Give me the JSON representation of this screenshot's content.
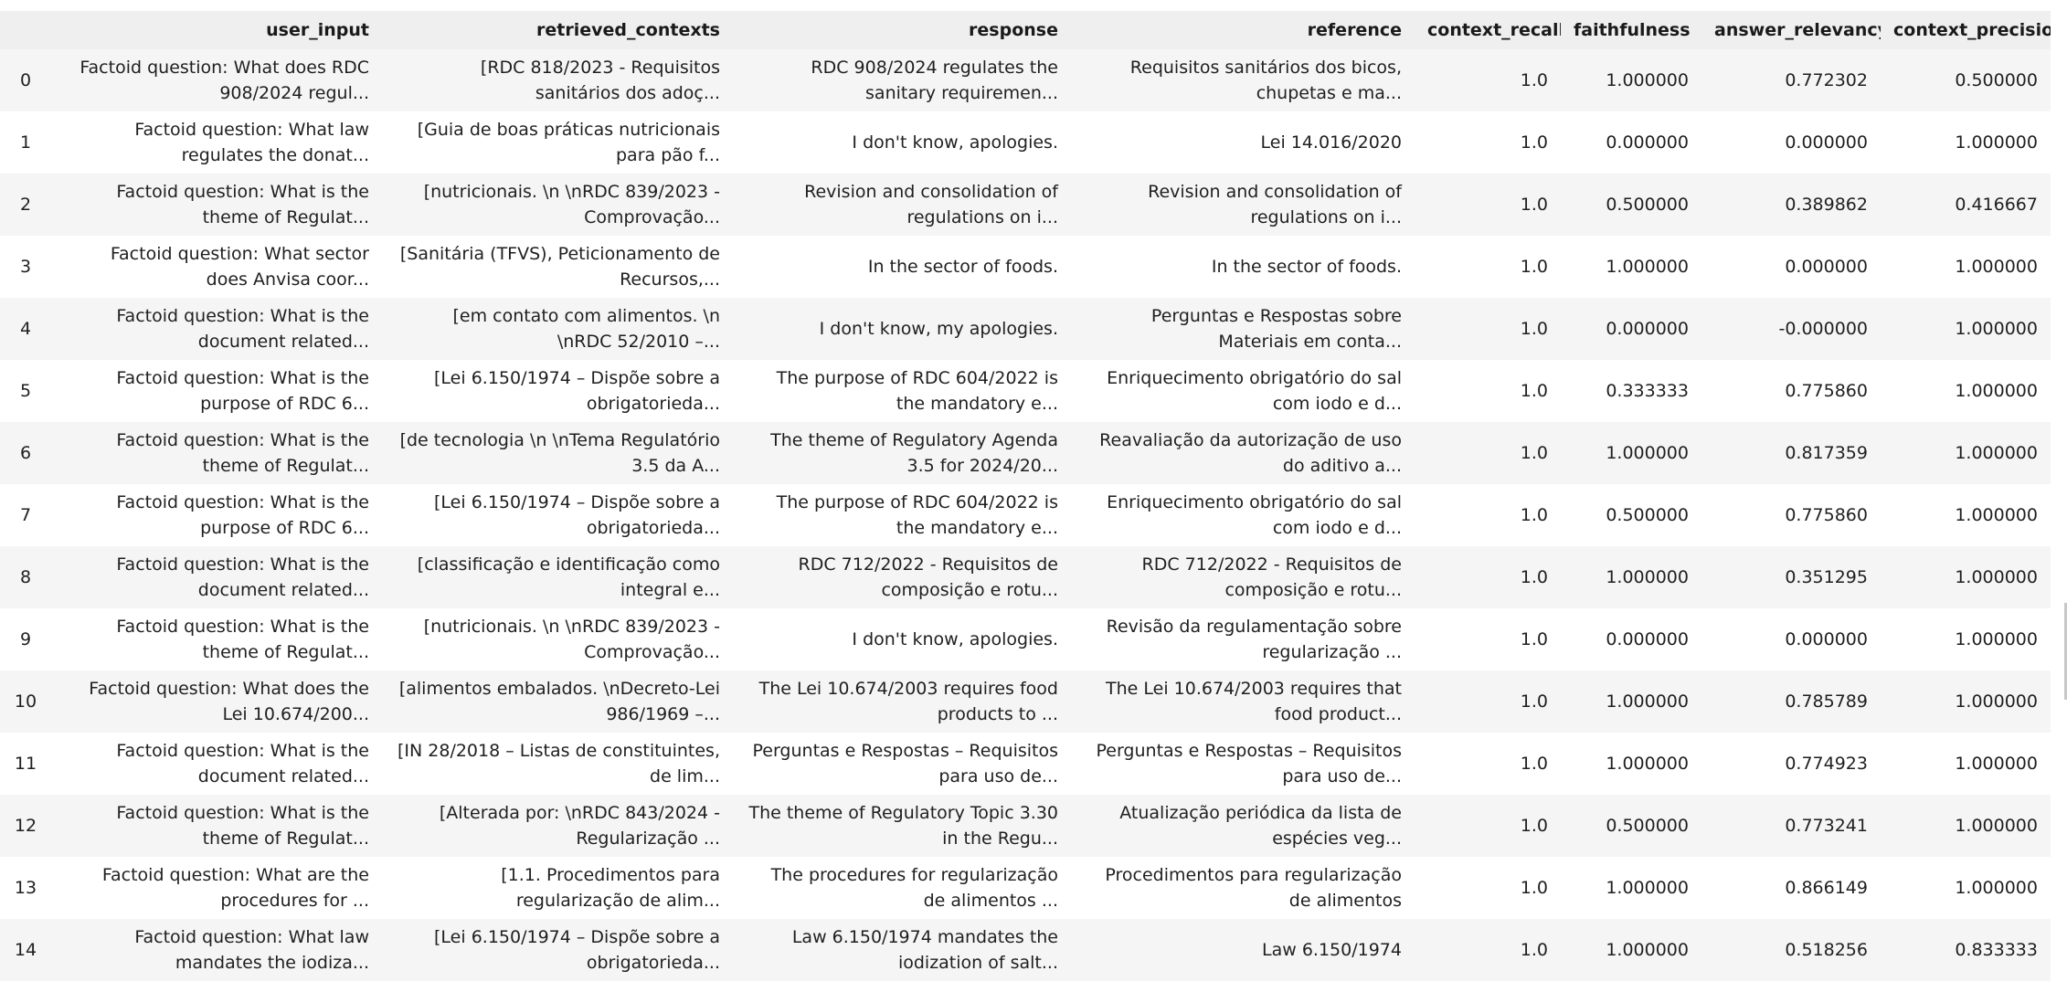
{
  "table": {
    "index_header": "",
    "columns": [
      "user_input",
      "retrieved_contexts",
      "response",
      "reference",
      "context_recall",
      "faithfulness",
      "answer_relevancy",
      "context_precision"
    ],
    "rows": [
      {
        "index": "0",
        "user_input": "Factoid question: What does RDC 908/2024 regul...",
        "retrieved_contexts": "[RDC 818/2023 - Requisitos sanitários dos adoç...",
        "response": "RDC 908/2024 regulates the sanitary requiremen...",
        "reference": "Requisitos sanitários dos bicos, chupetas e ma...",
        "context_recall": "1.0",
        "faithfulness": "1.000000",
        "answer_relevancy": "0.772302",
        "context_precision": "0.500000"
      },
      {
        "index": "1",
        "user_input": "Factoid question: What law regulates the donat...",
        "retrieved_contexts": "[Guia de boas práticas nutricionais para pão f...",
        "response": "I don't know, apologies.",
        "reference": "Lei 14.016/2020",
        "context_recall": "1.0",
        "faithfulness": "0.000000",
        "answer_relevancy": "0.000000",
        "context_precision": "1.000000"
      },
      {
        "index": "2",
        "user_input": "Factoid question: What is the theme of Regulat...",
        "retrieved_contexts": "[nutricionais. \\n \\nRDC 839/2023 - Comprovação...",
        "response": "Revision and consolidation of regulations on i...",
        "reference": "Revision and consolidation of regulations on i...",
        "context_recall": "1.0",
        "faithfulness": "0.500000",
        "answer_relevancy": "0.389862",
        "context_precision": "0.416667"
      },
      {
        "index": "3",
        "user_input": "Factoid question: What sector does Anvisa coor...",
        "retrieved_contexts": "[Sanitária (TFVS), Peticionamento de Recursos,...",
        "response": "In the sector of foods.",
        "reference": "In the sector of foods.",
        "context_recall": "1.0",
        "faithfulness": "1.000000",
        "answer_relevancy": "0.000000",
        "context_precision": "1.000000"
      },
      {
        "index": "4",
        "user_input": "Factoid question: What is the document related...",
        "retrieved_contexts": "[em contato com alimentos. \\n \\nRDC 52/2010 –...",
        "response": "I don't know, my apologies.",
        "reference": "Perguntas e Respostas sobre Materiais em conta...",
        "context_recall": "1.0",
        "faithfulness": "0.000000",
        "answer_relevancy": "-0.000000",
        "context_precision": "1.000000"
      },
      {
        "index": "5",
        "user_input": "Factoid question: What is the purpose of RDC 6...",
        "retrieved_contexts": "[Lei 6.150/1974 – Dispõe sobre a obrigatorieda...",
        "response": "The purpose of RDC 604/2022 is the mandatory e...",
        "reference": "Enriquecimento obrigatório do sal com iodo e d...",
        "context_recall": "1.0",
        "faithfulness": "0.333333",
        "answer_relevancy": "0.775860",
        "context_precision": "1.000000"
      },
      {
        "index": "6",
        "user_input": "Factoid question: What is the theme of Regulat...",
        "retrieved_contexts": "[de tecnologia \\n \\nTema Regulatório 3.5 da A...",
        "response": "The theme of Regulatory Agenda 3.5 for 2024/20...",
        "reference": "Reavaliação da autorização de uso do aditivo a...",
        "context_recall": "1.0",
        "faithfulness": "1.000000",
        "answer_relevancy": "0.817359",
        "context_precision": "1.000000"
      },
      {
        "index": "7",
        "user_input": "Factoid question: What is the purpose of RDC 6...",
        "retrieved_contexts": "[Lei 6.150/1974 – Dispõe sobre a obrigatorieda...",
        "response": "The purpose of RDC 604/2022 is the mandatory e...",
        "reference": "Enriquecimento obrigatório do sal com iodo e d...",
        "context_recall": "1.0",
        "faithfulness": "0.500000",
        "answer_relevancy": "0.775860",
        "context_precision": "1.000000"
      },
      {
        "index": "8",
        "user_input": "Factoid question: What is the document related...",
        "retrieved_contexts": "[classificação e identificação como integral e...",
        "response": "RDC 712/2022 - Requisitos de composição e rotu...",
        "reference": "RDC 712/2022 - Requisitos de composição e rotu...",
        "context_recall": "1.0",
        "faithfulness": "1.000000",
        "answer_relevancy": "0.351295",
        "context_precision": "1.000000"
      },
      {
        "index": "9",
        "user_input": "Factoid question: What is the theme of Regulat...",
        "retrieved_contexts": "[nutricionais. \\n \\nRDC 839/2023 - Comprovação...",
        "response": "I don't know, apologies.",
        "reference": "Revisão da regulamentação sobre regularização ...",
        "context_recall": "1.0",
        "faithfulness": "0.000000",
        "answer_relevancy": "0.000000",
        "context_precision": "1.000000"
      },
      {
        "index": "10",
        "user_input": "Factoid question: What does the Lei 10.674/200...",
        "retrieved_contexts": "[alimentos embalados. \\nDecreto-Lei 986/1969 –...",
        "response": "The Lei 10.674/2003 requires food products to ...",
        "reference": "The Lei 10.674/2003 requires that food product...",
        "context_recall": "1.0",
        "faithfulness": "1.000000",
        "answer_relevancy": "0.785789",
        "context_precision": "1.000000"
      },
      {
        "index": "11",
        "user_input": "Factoid question: What is the document related...",
        "retrieved_contexts": "[IN 28/2018 – Listas de constituintes, de lim...",
        "response": "Perguntas e Respostas – Requisitos para uso de...",
        "reference": "Perguntas e Respostas – Requisitos para uso de...",
        "context_recall": "1.0",
        "faithfulness": "1.000000",
        "answer_relevancy": "0.774923",
        "context_precision": "1.000000"
      },
      {
        "index": "12",
        "user_input": "Factoid question: What is the theme of Regulat...",
        "retrieved_contexts": "[Alterada por: \\nRDC 843/2024 - Regularização ...",
        "response": "The theme of Regulatory Topic 3.30 in the Regu...",
        "reference": "Atualização periódica da lista de espécies veg...",
        "context_recall": "1.0",
        "faithfulness": "0.500000",
        "answer_relevancy": "0.773241",
        "context_precision": "1.000000"
      },
      {
        "index": "13",
        "user_input": "Factoid question: What are the procedures for ...",
        "retrieved_contexts": "[1.1. Procedimentos para regularização de alim...",
        "response": "The procedures for regularização de alimentos ...",
        "reference": "Procedimentos para regularização de alimentos",
        "context_recall": "1.0",
        "faithfulness": "1.000000",
        "answer_relevancy": "0.866149",
        "context_precision": "1.000000"
      },
      {
        "index": "14",
        "user_input": "Factoid question: What law mandates the iodiza...",
        "retrieved_contexts": "[Lei 6.150/1974 – Dispõe sobre a obrigatorieda...",
        "response": "Law 6.150/1974 mandates the iodization of salt...",
        "reference": "Law 6.150/1974",
        "context_recall": "1.0",
        "faithfulness": "1.000000",
        "answer_relevancy": "0.518256",
        "context_precision": "0.833333"
      }
    ]
  }
}
